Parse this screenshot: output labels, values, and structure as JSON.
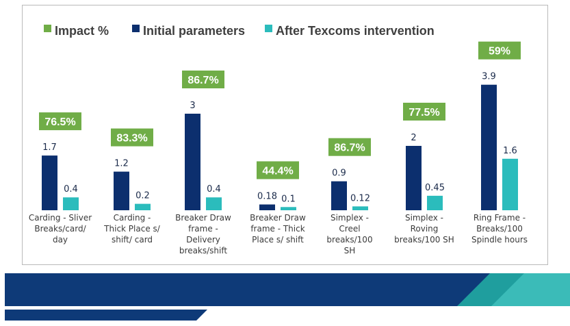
{
  "colors": {
    "impact": "#70ad47",
    "initial": "#0c2f6e",
    "after": "#2bbcbc",
    "footer_dark": "#0e3a78",
    "footer_teal_dark": "#1f9e9e",
    "footer_teal_light": "#3bbbb8"
  },
  "legend": {
    "impact": "Impact %",
    "initial": "Initial parameters",
    "after": "After Texcoms intervention"
  },
  "chart_data": {
    "type": "bar",
    "title": "",
    "xlabel": "",
    "ylabel": "",
    "legend_position": "top",
    "grid": false,
    "categories": [
      [
        "Carding - Sliver",
        "Breaks/card/",
        "day"
      ],
      [
        "Carding -",
        "Thick Place s/",
        "shift/ card"
      ],
      [
        "Breaker Draw",
        "frame -",
        "Delivery",
        "breaks/shift"
      ],
      [
        "Breaker Draw",
        "frame - Thick",
        "Place s/ shift"
      ],
      [
        "Simplex -",
        "Creel",
        "breaks/100",
        "SH"
      ],
      [
        "Simplex -",
        "Roving",
        "breaks/100 SH"
      ],
      [
        "Ring Frame -",
        "Breaks/100",
        "Spindle hours"
      ]
    ],
    "series": [
      {
        "name": "Initial parameters",
        "values": [
          1.7,
          1.2,
          3,
          0.18,
          0.9,
          2,
          3.9
        ],
        "labels": [
          "1.7",
          "1.2",
          "3",
          "0.18",
          "0.9",
          "2",
          "3.9"
        ]
      },
      {
        "name": "After Texcoms intervention",
        "values": [
          0.4,
          0.2,
          0.4,
          0.1,
          0.12,
          0.45,
          1.6
        ],
        "labels": [
          "0.4",
          "0.2",
          "0.4",
          "0.1",
          "0.12",
          "0.45",
          "1.6"
        ]
      }
    ],
    "impact": {
      "name": "Impact %",
      "labels": [
        "76.5%",
        "83.3%",
        "86.7%",
        "44.4%",
        "86.7%",
        "77.5%",
        "59%"
      ]
    }
  }
}
